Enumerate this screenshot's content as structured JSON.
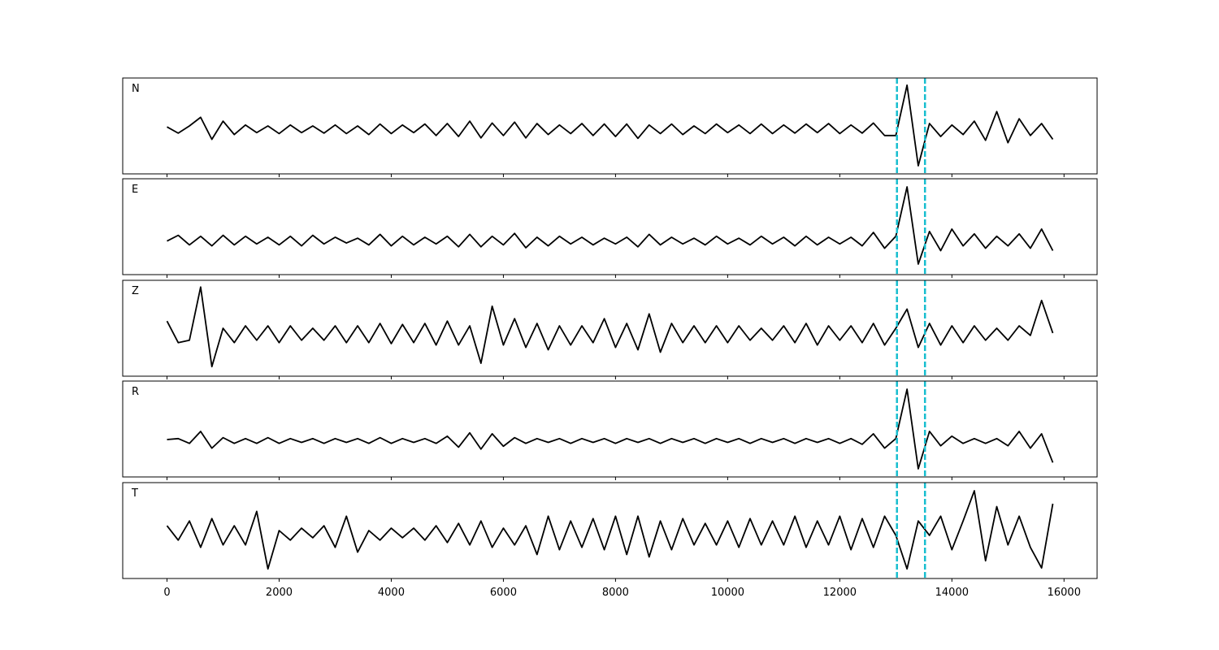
{
  "chart_data": [
    {
      "type": "line",
      "label": "N",
      "color": "#000000",
      "xlim": [
        -790,
        16590
      ],
      "ylim": [
        -1,
        1
      ],
      "vlines": {
        "x": [
          13020,
          13520
        ],
        "color": "#17becf",
        "style": "dashed"
      },
      "x": [
        0,
        200,
        400,
        600,
        800,
        1000,
        1200,
        1400,
        1600,
        1800,
        2000,
        2200,
        2400,
        2600,
        2800,
        3000,
        3200,
        3400,
        3600,
        3800,
        4000,
        4200,
        4400,
        4600,
        4800,
        5000,
        5200,
        5400,
        5600,
        5800,
        6000,
        6200,
        6400,
        6600,
        6800,
        7000,
        7200,
        7400,
        7600,
        7800,
        8000,
        8200,
        8400,
        8600,
        8800,
        9000,
        9200,
        9400,
        9600,
        9800,
        10000,
        10200,
        10400,
        10600,
        10800,
        11000,
        11200,
        11400,
        11600,
        11800,
        12000,
        12200,
        12400,
        12600,
        12800,
        13000,
        13200,
        13400,
        13600,
        13800,
        14000,
        14200,
        14400,
        14600,
        14800,
        15000,
        15200,
        15400,
        15600,
        15800
      ],
      "values": [
        -0.02,
        -0.15,
        0.0,
        0.18,
        -0.28,
        0.1,
        -0.18,
        0.02,
        -0.14,
        0.0,
        -0.16,
        0.02,
        -0.14,
        0.0,
        -0.15,
        0.02,
        -0.16,
        0.0,
        -0.18,
        0.04,
        -0.16,
        0.02,
        -0.14,
        0.04,
        -0.2,
        0.05,
        -0.22,
        0.1,
        -0.25,
        0.06,
        -0.2,
        0.08,
        -0.25,
        0.05,
        -0.18,
        0.02,
        -0.16,
        0.05,
        -0.2,
        0.04,
        -0.22,
        0.04,
        -0.26,
        0.02,
        -0.16,
        0.04,
        -0.18,
        0.0,
        -0.16,
        0.04,
        -0.14,
        0.02,
        -0.16,
        0.04,
        -0.16,
        0.02,
        -0.15,
        0.04,
        -0.14,
        0.05,
        -0.16,
        0.02,
        -0.15,
        0.06,
        -0.2,
        -0.2,
        0.85,
        -0.83,
        0.05,
        -0.22,
        0.02,
        -0.18,
        0.1,
        -0.3,
        0.3,
        -0.35,
        0.15,
        -0.2,
        0.05,
        -0.28
      ]
    },
    {
      "type": "line",
      "label": "E",
      "color": "#000000",
      "xlim": [
        -790,
        16590
      ],
      "ylim": [
        -1,
        1
      ],
      "vlines": {
        "x": [
          13020,
          13520
        ],
        "color": "#17becf",
        "style": "dashed"
      },
      "x": [
        0,
        200,
        400,
        600,
        800,
        1000,
        1200,
        1400,
        1600,
        1800,
        2000,
        2200,
        2400,
        2600,
        2800,
        3000,
        3200,
        3400,
        3600,
        3800,
        4000,
        4200,
        4400,
        4600,
        4800,
        5000,
        5200,
        5400,
        5600,
        5800,
        6000,
        6200,
        6400,
        6600,
        6800,
        7000,
        7200,
        7400,
        7600,
        7800,
        8000,
        8200,
        8400,
        8600,
        8800,
        9000,
        9200,
        9400,
        9600,
        9800,
        10000,
        10200,
        10400,
        10600,
        10800,
        11000,
        11200,
        11400,
        11600,
        11800,
        12000,
        12200,
        12400,
        12600,
        12800,
        13000,
        13200,
        13400,
        13600,
        13800,
        14000,
        14200,
        14400,
        14600,
        14800,
        15000,
        15200,
        15400,
        15600,
        15800
      ],
      "values": [
        -0.3,
        -0.18,
        -0.38,
        -0.2,
        -0.4,
        -0.18,
        -0.38,
        -0.2,
        -0.36,
        -0.22,
        -0.38,
        -0.2,
        -0.4,
        -0.18,
        -0.36,
        -0.22,
        -0.34,
        -0.24,
        -0.38,
        -0.16,
        -0.4,
        -0.2,
        -0.38,
        -0.22,
        -0.36,
        -0.2,
        -0.42,
        -0.16,
        -0.42,
        -0.2,
        -0.38,
        -0.14,
        -0.44,
        -0.22,
        -0.4,
        -0.2,
        -0.36,
        -0.22,
        -0.38,
        -0.24,
        -0.36,
        -0.22,
        -0.42,
        -0.16,
        -0.38,
        -0.22,
        -0.36,
        -0.24,
        -0.38,
        -0.2,
        -0.36,
        -0.24,
        -0.38,
        -0.2,
        -0.36,
        -0.22,
        -0.4,
        -0.2,
        -0.38,
        -0.22,
        -0.36,
        -0.22,
        -0.4,
        -0.12,
        -0.45,
        -0.2,
        0.83,
        -0.78,
        -0.1,
        -0.5,
        -0.05,
        -0.4,
        -0.15,
        -0.45,
        -0.2,
        -0.4,
        -0.15,
        -0.45,
        -0.05,
        -0.5
      ]
    },
    {
      "type": "line",
      "label": "Z",
      "color": "#000000",
      "xlim": [
        -790,
        16590
      ],
      "ylim": [
        -1,
        1
      ],
      "vlines": {
        "x": [
          13020,
          13520
        ],
        "color": "#17becf",
        "style": "dashed"
      },
      "x": [
        0,
        200,
        400,
        600,
        800,
        1000,
        1200,
        1400,
        1600,
        1800,
        2000,
        2200,
        2400,
        2600,
        2800,
        3000,
        3200,
        3400,
        3600,
        3800,
        4000,
        4200,
        4400,
        4600,
        4800,
        5000,
        5200,
        5400,
        5600,
        5800,
        6000,
        6200,
        6400,
        6600,
        6800,
        7000,
        7200,
        7400,
        7600,
        7800,
        8000,
        8200,
        8400,
        8600,
        8800,
        9000,
        9200,
        9400,
        9600,
        9800,
        10000,
        10200,
        10400,
        10600,
        10800,
        11000,
        11200,
        11400,
        11600,
        11800,
        12000,
        12200,
        12400,
        12600,
        12800,
        13000,
        13200,
        13400,
        13600,
        13800,
        14000,
        14200,
        14400,
        14600,
        14800,
        15000,
        15200,
        15400,
        15600,
        15800
      ],
      "values": [
        0.15,
        -0.3,
        -0.25,
        0.86,
        -0.8,
        0.0,
        -0.3,
        0.05,
        -0.25,
        0.05,
        -0.3,
        0.05,
        -0.25,
        0.0,
        -0.25,
        0.05,
        -0.3,
        0.05,
        -0.3,
        0.1,
        -0.32,
        0.08,
        -0.3,
        0.1,
        -0.35,
        0.15,
        -0.35,
        0.05,
        -0.73,
        0.46,
        -0.35,
        0.2,
        -0.4,
        0.1,
        -0.45,
        0.05,
        -0.35,
        0.05,
        -0.3,
        0.2,
        -0.4,
        0.1,
        -0.45,
        0.3,
        -0.5,
        0.1,
        -0.3,
        0.05,
        -0.3,
        0.05,
        -0.3,
        0.05,
        -0.25,
        0.0,
        -0.25,
        0.05,
        -0.3,
        0.1,
        -0.35,
        0.05,
        -0.25,
        0.05,
        -0.3,
        0.1,
        -0.35,
        0.0,
        0.4,
        -0.4,
        0.1,
        -0.35,
        0.05,
        -0.3,
        0.05,
        -0.25,
        0.0,
        -0.25,
        0.05,
        -0.15,
        0.58,
        -0.1
      ]
    },
    {
      "type": "line",
      "label": "R",
      "color": "#000000",
      "xlim": [
        -790,
        16590
      ],
      "ylim": [
        -1,
        1
      ],
      "vlines": {
        "x": [
          13020,
          13520
        ],
        "color": "#17becf",
        "style": "dashed"
      },
      "x": [
        0,
        200,
        400,
        600,
        800,
        1000,
        1200,
        1400,
        1600,
        1800,
        2000,
        2200,
        2400,
        2600,
        2800,
        3000,
        3200,
        3400,
        3600,
        3800,
        4000,
        4200,
        4400,
        4600,
        4800,
        5000,
        5200,
        5400,
        5600,
        5800,
        6000,
        6200,
        6400,
        6600,
        6800,
        7000,
        7200,
        7400,
        7600,
        7800,
        8000,
        8200,
        8400,
        8600,
        8800,
        9000,
        9200,
        9400,
        9600,
        9800,
        10000,
        10200,
        10400,
        10600,
        10800,
        11000,
        11200,
        11400,
        11600,
        11800,
        12000,
        12200,
        12400,
        12600,
        12800,
        13000,
        13200,
        13400,
        13600,
        13800,
        14000,
        14200,
        14400,
        14600,
        14800,
        15000,
        15200,
        15400,
        15600,
        15800
      ],
      "values": [
        -0.22,
        -0.2,
        -0.3,
        -0.05,
        -0.4,
        -0.18,
        -0.3,
        -0.2,
        -0.3,
        -0.18,
        -0.3,
        -0.2,
        -0.28,
        -0.2,
        -0.3,
        -0.2,
        -0.28,
        -0.2,
        -0.3,
        -0.18,
        -0.3,
        -0.2,
        -0.28,
        -0.2,
        -0.3,
        -0.15,
        -0.38,
        -0.08,
        -0.42,
        -0.1,
        -0.36,
        -0.18,
        -0.3,
        -0.2,
        -0.28,
        -0.2,
        -0.3,
        -0.2,
        -0.28,
        -0.2,
        -0.3,
        -0.2,
        -0.28,
        -0.2,
        -0.3,
        -0.2,
        -0.28,
        -0.2,
        -0.3,
        -0.2,
        -0.28,
        -0.2,
        -0.3,
        -0.2,
        -0.28,
        -0.2,
        -0.3,
        -0.2,
        -0.28,
        -0.2,
        -0.3,
        -0.2,
        -0.32,
        -0.1,
        -0.4,
        -0.2,
        0.83,
        -0.83,
        -0.05,
        -0.35,
        -0.15,
        -0.3,
        -0.2,
        -0.3,
        -0.2,
        -0.35,
        -0.05,
        -0.4,
        -0.1,
        -0.7
      ]
    },
    {
      "type": "line",
      "label": "T",
      "color": "#000000",
      "xlim": [
        -790,
        16590
      ],
      "ylim": [
        -1,
        1
      ],
      "vlines": {
        "x": [
          13020,
          13520
        ],
        "color": "#17becf",
        "style": "dashed"
      },
      "xticks": [
        0,
        2000,
        4000,
        6000,
        8000,
        10000,
        12000,
        14000,
        16000
      ],
      "x": [
        0,
        200,
        400,
        600,
        800,
        1000,
        1200,
        1400,
        1600,
        1800,
        2000,
        2200,
        2400,
        2600,
        2800,
        3000,
        3200,
        3400,
        3600,
        3800,
        4000,
        4200,
        4400,
        4600,
        4800,
        5000,
        5200,
        5400,
        5600,
        5800,
        6000,
        6200,
        6400,
        6600,
        6800,
        7000,
        7200,
        7400,
        7600,
        7800,
        8000,
        8200,
        8400,
        8600,
        8800,
        9000,
        9200,
        9400,
        9600,
        9800,
        10000,
        10200,
        10400,
        10600,
        10800,
        11000,
        11200,
        11400,
        11600,
        11800,
        12000,
        12200,
        12400,
        12600,
        12800,
        13000,
        13200,
        13400,
        13600,
        13800,
        14000,
        14200,
        14400,
        14600,
        14800,
        15000,
        15200,
        15400,
        15600,
        15800
      ],
      "values": [
        0.1,
        -0.2,
        0.2,
        -0.35,
        0.25,
        -0.3,
        0.1,
        -0.3,
        0.4,
        -0.8,
        0.0,
        -0.2,
        0.05,
        -0.15,
        0.1,
        -0.35,
        0.3,
        -0.45,
        0.0,
        -0.2,
        0.05,
        -0.15,
        0.05,
        -0.2,
        0.1,
        -0.25,
        0.15,
        -0.3,
        0.2,
        -0.35,
        0.05,
        -0.3,
        0.1,
        -0.5,
        0.3,
        -0.4,
        0.2,
        -0.35,
        0.25,
        -0.4,
        0.3,
        -0.5,
        0.3,
        -0.55,
        0.2,
        -0.4,
        0.25,
        -0.3,
        0.15,
        -0.3,
        0.2,
        -0.35,
        0.25,
        -0.3,
        0.2,
        -0.3,
        0.3,
        -0.35,
        0.2,
        -0.3,
        0.3,
        -0.4,
        0.25,
        -0.35,
        0.3,
        -0.1,
        -0.8,
        0.2,
        -0.1,
        0.3,
        -0.4,
        0.2,
        0.83,
        -0.63,
        0.5,
        -0.3,
        0.3,
        -0.35,
        -0.78,
        0.56
      ]
    }
  ]
}
